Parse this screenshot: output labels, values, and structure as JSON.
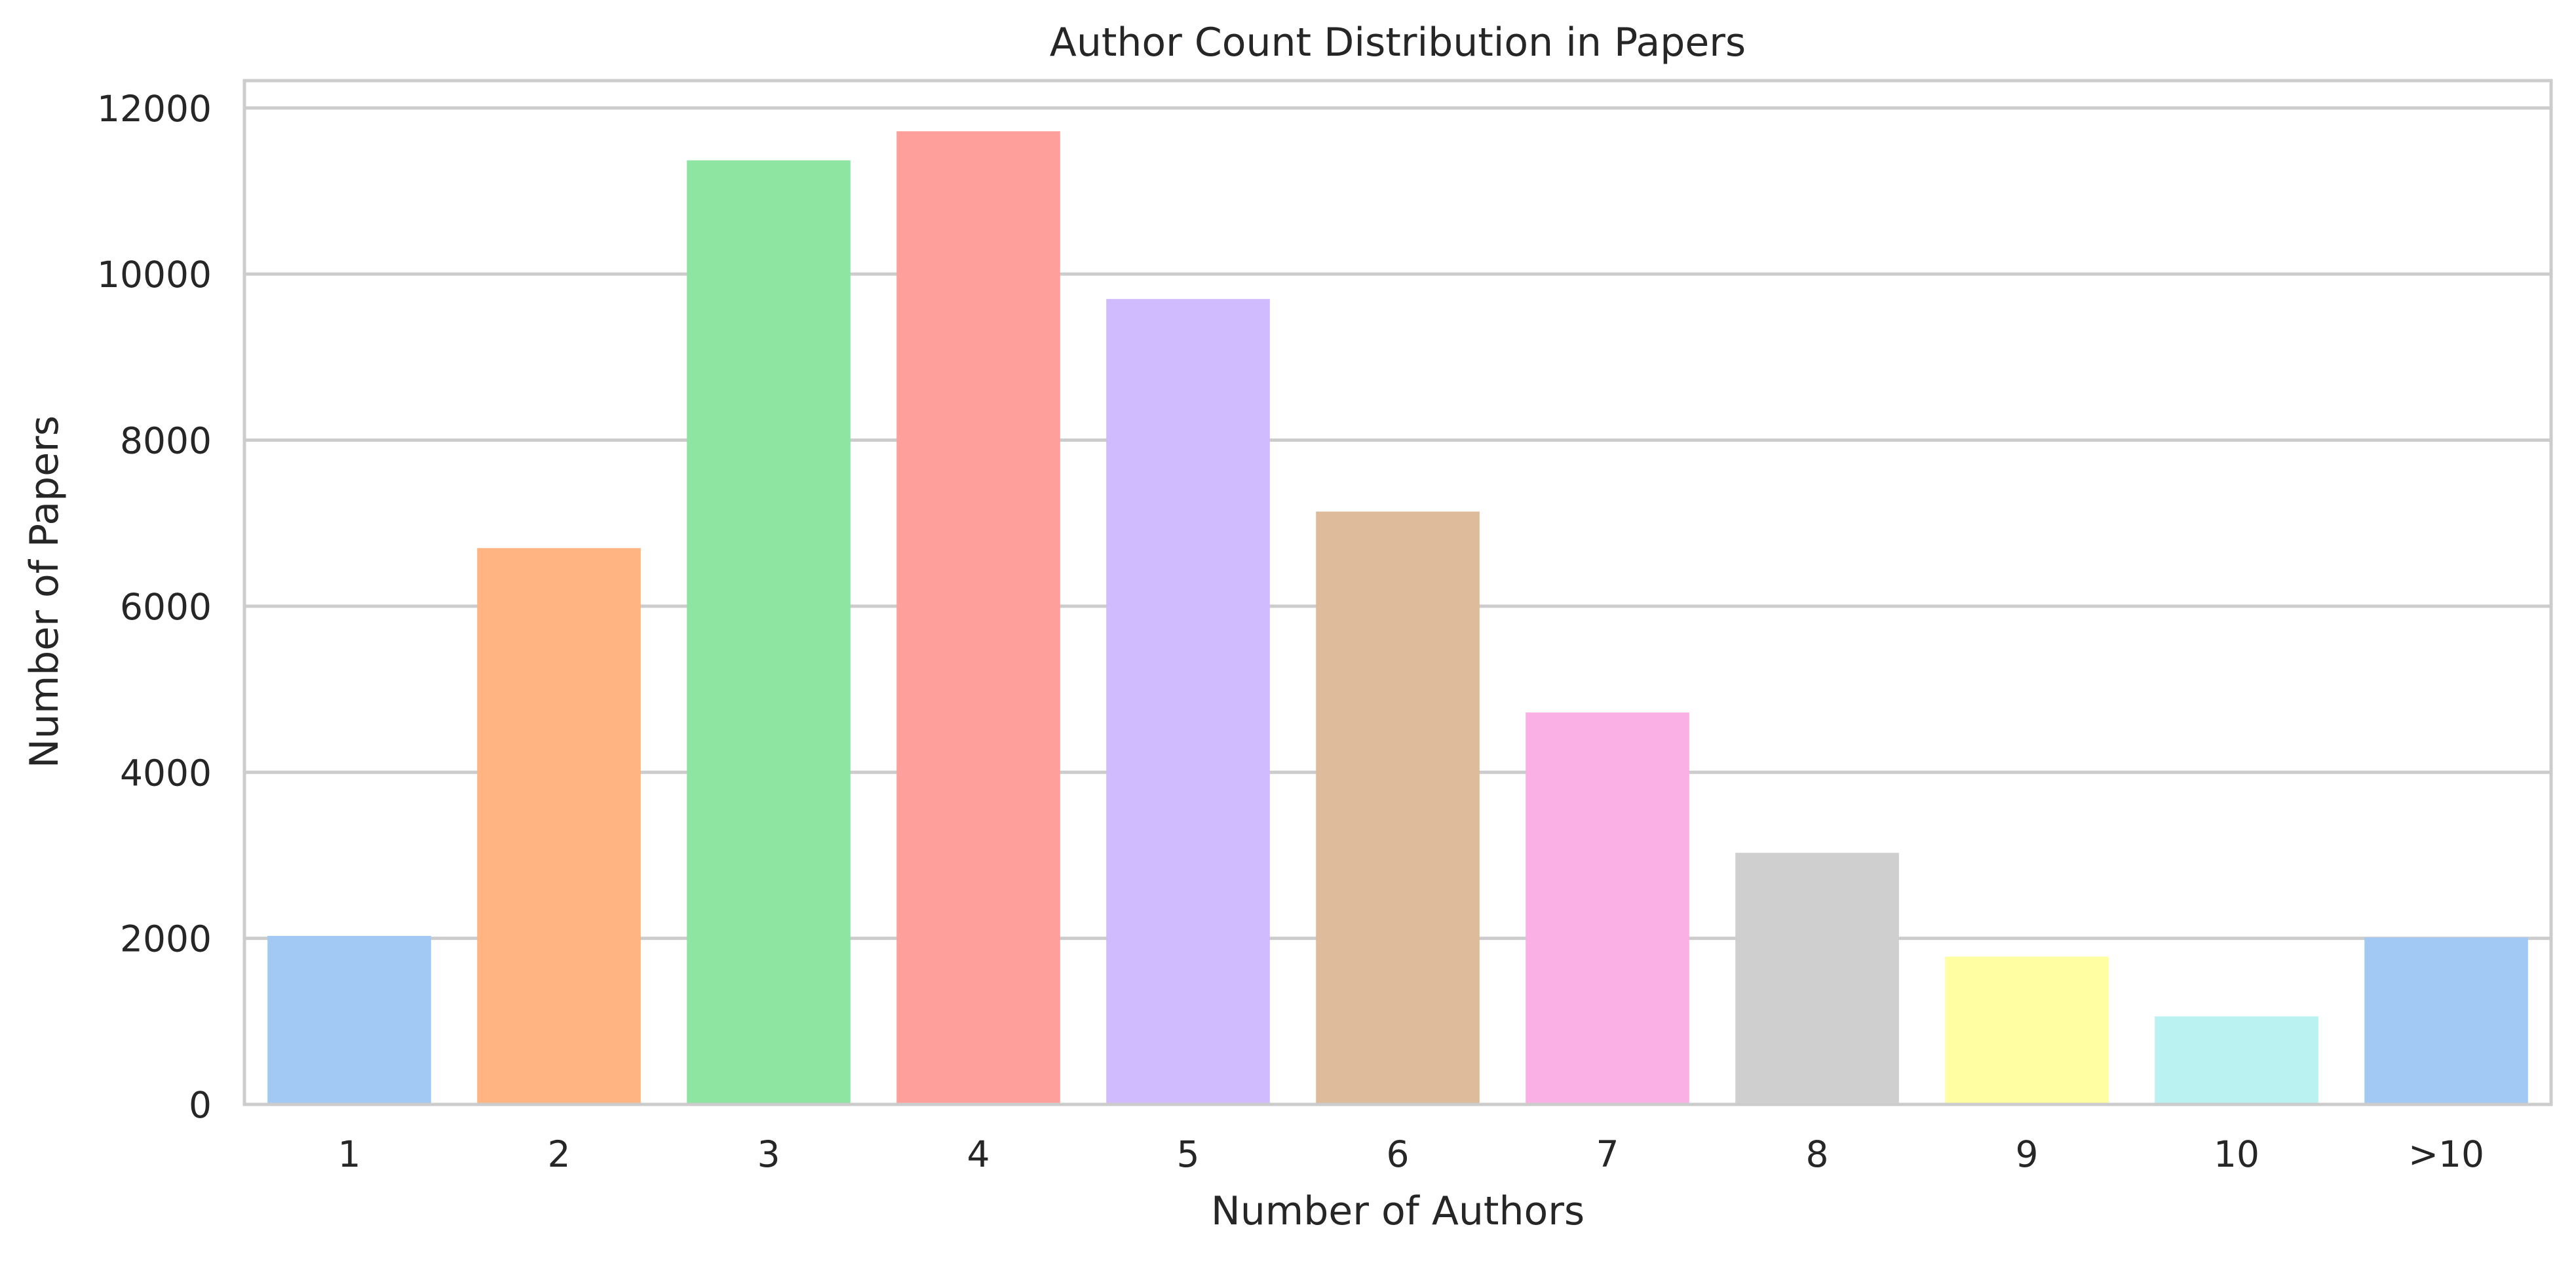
{
  "chart_data": {
    "type": "bar",
    "title": "Author Count Distribution in Papers",
    "xlabel": "Number of Authors",
    "ylabel": "Number of Papers",
    "categories": [
      "1",
      "2",
      "3",
      "4",
      "5",
      "6",
      "7",
      "8",
      "9",
      "10",
      ">10"
    ],
    "values": [
      2030,
      6700,
      11370,
      11720,
      9700,
      7140,
      4720,
      3030,
      1780,
      1060,
      2010
    ],
    "ylim": [
      0,
      12330
    ],
    "yticks": [
      0,
      2000,
      4000,
      6000,
      8000,
      10000,
      12000
    ],
    "grid": true,
    "colors": [
      "#a1c9f4",
      "#ffb482",
      "#8de5a1",
      "#ff9f9b",
      "#d0bbff",
      "#debb9b",
      "#fab0e4",
      "#cfcfcf",
      "#fffea3",
      "#b9f2f0",
      "#a1c9f4"
    ]
  }
}
